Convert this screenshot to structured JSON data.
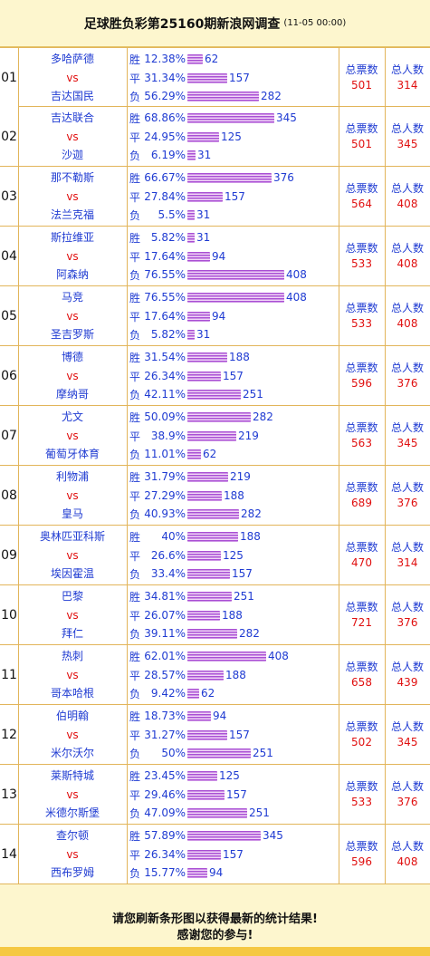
{
  "header": {
    "title": "足球胜负彩第25160期新浪网调查",
    "datetime": "(11-05 00:00)"
  },
  "labels": {
    "vs": "vs",
    "tickets": "总票数",
    "people": "总人数",
    "win": "胜",
    "draw": "平",
    "lose": "负"
  },
  "matches": [
    {
      "index": "01",
      "home": "多哈萨德",
      "away": "吉达国民",
      "win": {
        "pct": "12.38%",
        "count": "62",
        "fraction": 0.1238
      },
      "draw": {
        "pct": "31.34%",
        "count": "157",
        "fraction": 0.3134
      },
      "lose": {
        "pct": "56.29%",
        "count": "282",
        "fraction": 0.5629
      },
      "tickets": "501",
      "people": "314"
    },
    {
      "index": "02",
      "home": "吉达联合",
      "away": "沙迦",
      "win": {
        "pct": "68.86%",
        "count": "345",
        "fraction": 0.6886
      },
      "draw": {
        "pct": "24.95%",
        "count": "125",
        "fraction": 0.2495
      },
      "lose": {
        "pct": "6.19%",
        "count": "31",
        "fraction": 0.0619
      },
      "tickets": "501",
      "people": "345"
    },
    {
      "index": "03",
      "home": "那不勒斯",
      "away": "法兰克福",
      "win": {
        "pct": "66.67%",
        "count": "376",
        "fraction": 0.6667
      },
      "draw": {
        "pct": "27.84%",
        "count": "157",
        "fraction": 0.2784
      },
      "lose": {
        "pct": "5.5%",
        "count": "31",
        "fraction": 0.055
      },
      "tickets": "564",
      "people": "408"
    },
    {
      "index": "04",
      "home": "斯拉维亚",
      "away": "阿森纳",
      "win": {
        "pct": "5.82%",
        "count": "31",
        "fraction": 0.0582
      },
      "draw": {
        "pct": "17.64%",
        "count": "94",
        "fraction": 0.1764
      },
      "lose": {
        "pct": "76.55%",
        "count": "408",
        "fraction": 0.7655
      },
      "tickets": "533",
      "people": "408"
    },
    {
      "index": "05",
      "home": "马竞",
      "away": "圣吉罗斯",
      "win": {
        "pct": "76.55%",
        "count": "408",
        "fraction": 0.7655
      },
      "draw": {
        "pct": "17.64%",
        "count": "94",
        "fraction": 0.1764
      },
      "lose": {
        "pct": "5.82%",
        "count": "31",
        "fraction": 0.0582
      },
      "tickets": "533",
      "people": "408"
    },
    {
      "index": "06",
      "home": "博德",
      "away": "摩纳哥",
      "win": {
        "pct": "31.54%",
        "count": "188",
        "fraction": 0.3154
      },
      "draw": {
        "pct": "26.34%",
        "count": "157",
        "fraction": 0.2634
      },
      "lose": {
        "pct": "42.11%",
        "count": "251",
        "fraction": 0.4211
      },
      "tickets": "596",
      "people": "376"
    },
    {
      "index": "07",
      "home": "尤文",
      "away": "葡萄牙体育",
      "win": {
        "pct": "50.09%",
        "count": "282",
        "fraction": 0.5009
      },
      "draw": {
        "pct": "38.9%",
        "count": "219",
        "fraction": 0.389
      },
      "lose": {
        "pct": "11.01%",
        "count": "62",
        "fraction": 0.1101
      },
      "tickets": "563",
      "people": "345"
    },
    {
      "index": "08",
      "home": "利物浦",
      "away": "皇马",
      "win": {
        "pct": "31.79%",
        "count": "219",
        "fraction": 0.3179
      },
      "draw": {
        "pct": "27.29%",
        "count": "188",
        "fraction": 0.2729
      },
      "lose": {
        "pct": "40.93%",
        "count": "282",
        "fraction": 0.4093
      },
      "tickets": "689",
      "people": "376"
    },
    {
      "index": "09",
      "home": "奥林匹亚科斯",
      "away": "埃因霍温",
      "win": {
        "pct": "40%",
        "count": "188",
        "fraction": 0.4
      },
      "draw": {
        "pct": "26.6%",
        "count": "125",
        "fraction": 0.266
      },
      "lose": {
        "pct": "33.4%",
        "count": "157",
        "fraction": 0.334
      },
      "tickets": "470",
      "people": "314"
    },
    {
      "index": "10",
      "home": "巴黎",
      "away": "拜仁",
      "win": {
        "pct": "34.81%",
        "count": "251",
        "fraction": 0.3481
      },
      "draw": {
        "pct": "26.07%",
        "count": "188",
        "fraction": 0.2607
      },
      "lose": {
        "pct": "39.11%",
        "count": "282",
        "fraction": 0.3911
      },
      "tickets": "721",
      "people": "376"
    },
    {
      "index": "11",
      "home": "热刺",
      "away": "哥本哈根",
      "win": {
        "pct": "62.01%",
        "count": "408",
        "fraction": 0.6201
      },
      "draw": {
        "pct": "28.57%",
        "count": "188",
        "fraction": 0.2857
      },
      "lose": {
        "pct": "9.42%",
        "count": "62",
        "fraction": 0.0942
      },
      "tickets": "658",
      "people": "439"
    },
    {
      "index": "12",
      "home": "伯明翰",
      "away": "米尔沃尔",
      "win": {
        "pct": "18.73%",
        "count": "94",
        "fraction": 0.1873
      },
      "draw": {
        "pct": "31.27%",
        "count": "157",
        "fraction": 0.3127
      },
      "lose": {
        "pct": "50%",
        "count": "251",
        "fraction": 0.5
      },
      "tickets": "502",
      "people": "345"
    },
    {
      "index": "13",
      "home": "莱斯特城",
      "away": "米德尔斯堡",
      "win": {
        "pct": "23.45%",
        "count": "125",
        "fraction": 0.2345
      },
      "draw": {
        "pct": "29.46%",
        "count": "157",
        "fraction": 0.2946
      },
      "lose": {
        "pct": "47.09%",
        "count": "251",
        "fraction": 0.4709
      },
      "tickets": "533",
      "people": "376"
    },
    {
      "index": "14",
      "home": "查尔顿",
      "away": "西布罗姆",
      "win": {
        "pct": "57.89%",
        "count": "345",
        "fraction": 0.5789
      },
      "draw": {
        "pct": "26.34%",
        "count": "157",
        "fraction": 0.2634
      },
      "lose": {
        "pct": "15.77%",
        "count": "94",
        "fraction": 0.1577
      },
      "tickets": "596",
      "people": "408"
    }
  ],
  "footer": {
    "line1": "请您刷新条形图以获得最新的统计结果!",
    "line2": "感谢您的参与!"
  },
  "colors": {
    "accent": "#1F3BD2",
    "highlight": "#E01010",
    "bar": "#A94FD4",
    "header_bg": "#FDF6CE",
    "border": "#E2B55A"
  }
}
